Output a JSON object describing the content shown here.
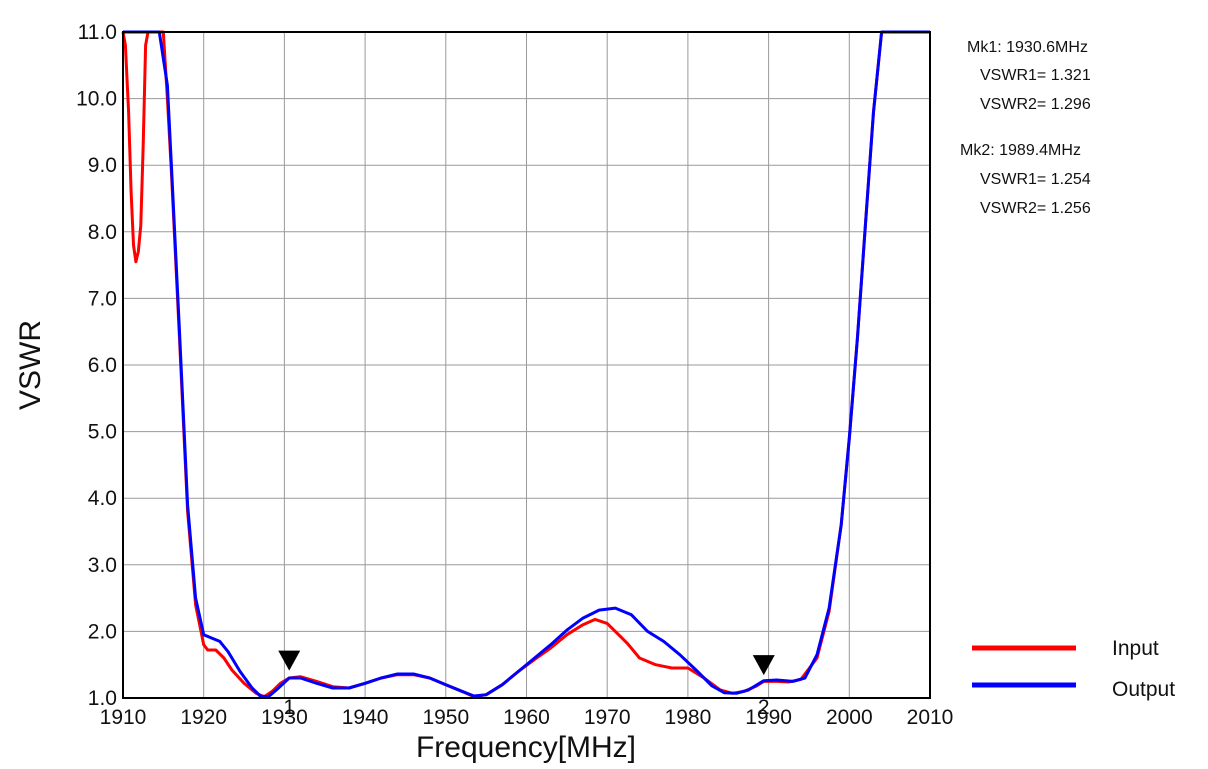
{
  "chart_data": {
    "type": "line",
    "title": "",
    "xlabel": "Frequency[MHz]",
    "ylabel": "VSWR",
    "xlim": [
      1910,
      2010
    ],
    "ylim": [
      1.0,
      11.0
    ],
    "x_ticks": [
      1910,
      1920,
      1930,
      1940,
      1950,
      1960,
      1970,
      1980,
      1990,
      2000,
      2010
    ],
    "y_ticks": [
      "1.0",
      "2.0",
      "3.0",
      "4.0",
      "5.0",
      "6.0",
      "7.0",
      "8.0",
      "9.0",
      "10.0",
      "11.0"
    ],
    "grid": true,
    "legend_position": "bottom-right",
    "series": [
      {
        "name": "Input",
        "color": "#ff0000",
        "points": [
          [
            1910.0,
            11.0
          ],
          [
            1910.3,
            10.8
          ],
          [
            1910.7,
            9.8
          ],
          [
            1911.0,
            8.6
          ],
          [
            1911.3,
            7.8
          ],
          [
            1911.6,
            7.55
          ],
          [
            1911.9,
            7.7
          ],
          [
            1912.2,
            8.1
          ],
          [
            1912.5,
            9.3
          ],
          [
            1912.8,
            10.8
          ],
          [
            1913.1,
            11.0
          ],
          [
            1914.0,
            11.0
          ],
          [
            1915.0,
            11.0
          ],
          [
            1915.5,
            10.0
          ],
          [
            1916.0,
            8.9
          ],
          [
            1917.0,
            6.4
          ],
          [
            1918.0,
            3.8
          ],
          [
            1919.0,
            2.4
          ],
          [
            1920.0,
            1.8
          ],
          [
            1920.5,
            1.72
          ],
          [
            1921.5,
            1.72
          ],
          [
            1922.5,
            1.6
          ],
          [
            1923.5,
            1.42
          ],
          [
            1925.0,
            1.22
          ],
          [
            1926.5,
            1.07
          ],
          [
            1927.5,
            1.02
          ],
          [
            1928.5,
            1.1
          ],
          [
            1929.5,
            1.22
          ],
          [
            1930.6,
            1.3
          ],
          [
            1932.0,
            1.32
          ],
          [
            1934.0,
            1.25
          ],
          [
            1936.0,
            1.17
          ],
          [
            1938.0,
            1.15
          ],
          [
            1940.0,
            1.22
          ],
          [
            1942.0,
            1.3
          ],
          [
            1944.0,
            1.35
          ],
          [
            1946.0,
            1.35
          ],
          [
            1948.0,
            1.3
          ],
          [
            1950.0,
            1.2
          ],
          [
            1952.0,
            1.1
          ],
          [
            1953.5,
            1.02
          ],
          [
            1955.0,
            1.05
          ],
          [
            1957.0,
            1.2
          ],
          [
            1959.0,
            1.4
          ],
          [
            1961.0,
            1.58
          ],
          [
            1963.0,
            1.75
          ],
          [
            1965.0,
            1.95
          ],
          [
            1967.0,
            2.1
          ],
          [
            1968.5,
            2.18
          ],
          [
            1970.0,
            2.12
          ],
          [
            1971.0,
            2.0
          ],
          [
            1972.5,
            1.82
          ],
          [
            1974.0,
            1.6
          ],
          [
            1976.0,
            1.5
          ],
          [
            1978.0,
            1.45
          ],
          [
            1980.0,
            1.45
          ],
          [
            1982.0,
            1.3
          ],
          [
            1984.0,
            1.12
          ],
          [
            1985.5,
            1.07
          ],
          [
            1987.0,
            1.1
          ],
          [
            1988.5,
            1.18
          ],
          [
            1989.4,
            1.25
          ],
          [
            1991.0,
            1.25
          ],
          [
            1992.5,
            1.24
          ],
          [
            1994.0,
            1.28
          ],
          [
            1996.0,
            1.6
          ],
          [
            1997.5,
            2.3
          ],
          [
            1999.0,
            3.6
          ],
          [
            2000.0,
            4.9
          ],
          [
            2001.0,
            6.4
          ],
          [
            2002.0,
            8.1
          ],
          [
            2003.0,
            9.8
          ],
          [
            2004.0,
            11.0
          ],
          [
            2010.0,
            11.0
          ]
        ]
      },
      {
        "name": "Output",
        "color": "#0000ff",
        "points": [
          [
            1910.0,
            11.0
          ],
          [
            1913.0,
            11.0
          ],
          [
            1914.5,
            11.0
          ],
          [
            1915.5,
            10.2
          ],
          [
            1916.0,
            9.0
          ],
          [
            1917.0,
            6.5
          ],
          [
            1918.0,
            3.9
          ],
          [
            1919.0,
            2.5
          ],
          [
            1920.0,
            1.95
          ],
          [
            1921.0,
            1.9
          ],
          [
            1922.0,
            1.85
          ],
          [
            1923.0,
            1.7
          ],
          [
            1924.5,
            1.4
          ],
          [
            1926.0,
            1.15
          ],
          [
            1927.0,
            1.03
          ],
          [
            1928.0,
            1.02
          ],
          [
            1929.0,
            1.12
          ],
          [
            1930.6,
            1.3
          ],
          [
            1932.0,
            1.3
          ],
          [
            1934.0,
            1.22
          ],
          [
            1936.0,
            1.15
          ],
          [
            1938.0,
            1.15
          ],
          [
            1940.0,
            1.22
          ],
          [
            1942.0,
            1.3
          ],
          [
            1944.0,
            1.36
          ],
          [
            1946.0,
            1.36
          ],
          [
            1948.0,
            1.3
          ],
          [
            1950.0,
            1.2
          ],
          [
            1952.0,
            1.1
          ],
          [
            1953.5,
            1.03
          ],
          [
            1955.0,
            1.05
          ],
          [
            1957.0,
            1.2
          ],
          [
            1959.0,
            1.4
          ],
          [
            1961.0,
            1.6
          ],
          [
            1963.0,
            1.8
          ],
          [
            1965.0,
            2.02
          ],
          [
            1967.0,
            2.2
          ],
          [
            1969.0,
            2.32
          ],
          [
            1971.0,
            2.35
          ],
          [
            1973.0,
            2.25
          ],
          [
            1975.0,
            2.0
          ],
          [
            1977.0,
            1.85
          ],
          [
            1979.0,
            1.65
          ],
          [
            1981.0,
            1.42
          ],
          [
            1983.0,
            1.18
          ],
          [
            1984.5,
            1.08
          ],
          [
            1986.0,
            1.07
          ],
          [
            1987.5,
            1.12
          ],
          [
            1989.4,
            1.26
          ],
          [
            1991.0,
            1.27
          ],
          [
            1993.0,
            1.25
          ],
          [
            1994.5,
            1.3
          ],
          [
            1996.0,
            1.65
          ],
          [
            1997.5,
            2.35
          ],
          [
            1999.0,
            3.6
          ],
          [
            2000.0,
            4.9
          ],
          [
            2001.0,
            6.4
          ],
          [
            2002.0,
            8.1
          ],
          [
            2003.0,
            9.8
          ],
          [
            2004.0,
            11.0
          ],
          [
            2010.0,
            11.0
          ]
        ]
      }
    ],
    "markers": [
      {
        "label": "1",
        "x": 1930.6,
        "y": 1.321
      },
      {
        "label": "2",
        "x": 1989.4,
        "y": 1.254
      }
    ],
    "marker_readout": [
      "Mk1: 1930.6MHz",
      "VSWR1= 1.321",
      "VSWR2= 1.296",
      "Mk2: 1989.4MHz",
      "VSWR1= 1.254",
      "VSWR2= 1.256"
    ]
  }
}
